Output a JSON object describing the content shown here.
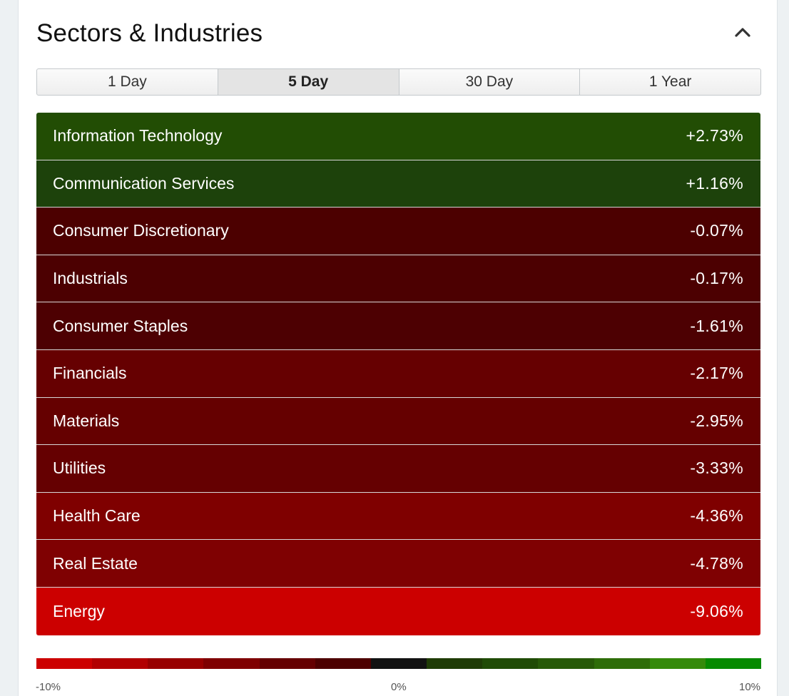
{
  "section": {
    "title": "Sectors & Industries",
    "collapse_icon": "chevron-up-icon"
  },
  "tabs": [
    {
      "label": "1 Day",
      "active": false
    },
    {
      "label": "5 Day",
      "active": true
    },
    {
      "label": "30 Day",
      "active": false
    },
    {
      "label": "1 Year",
      "active": false
    }
  ],
  "sectors": [
    {
      "name": "Information Technology",
      "change": "+2.73%",
      "value": 2.73,
      "color": "#224d04"
    },
    {
      "name": "Communication Services",
      "change": "+1.16%",
      "value": 1.16,
      "color": "#1d420b"
    },
    {
      "name": "Consumer Discretionary",
      "change": "-0.07%",
      "value": -0.07,
      "color": "#4c0000"
    },
    {
      "name": "Industrials",
      "change": "-0.17%",
      "value": -0.17,
      "color": "#4c0001"
    },
    {
      "name": "Consumer Staples",
      "change": "-1.61%",
      "value": -1.61,
      "color": "#4d0002"
    },
    {
      "name": "Financials",
      "change": "-2.17%",
      "value": -2.17,
      "color": "#660001"
    },
    {
      "name": "Materials",
      "change": "-2.95%",
      "value": -2.95,
      "color": "#650000"
    },
    {
      "name": "Utilities",
      "change": "-3.33%",
      "value": -3.33,
      "color": "#650001"
    },
    {
      "name": "Health Care",
      "change": "-4.36%",
      "value": -4.36,
      "color": "#7f0000"
    },
    {
      "name": "Real Estate",
      "change": "-4.78%",
      "value": -4.78,
      "color": "#7f0102"
    },
    {
      "name": "Energy",
      "change": "-9.06%",
      "value": -9.06,
      "color": "#cc0000"
    }
  ],
  "legend": {
    "min_label": "-10%",
    "mid_label": "0%",
    "max_label": "10%",
    "colors": [
      "#cc0000",
      "#b20001",
      "#980000",
      "#7f0001",
      "#650001",
      "#4d0000",
      "#121212",
      "#1f3c06",
      "#204b06",
      "#275a08",
      "#2e6d09",
      "#358a0a",
      "#078a00"
    ]
  }
}
